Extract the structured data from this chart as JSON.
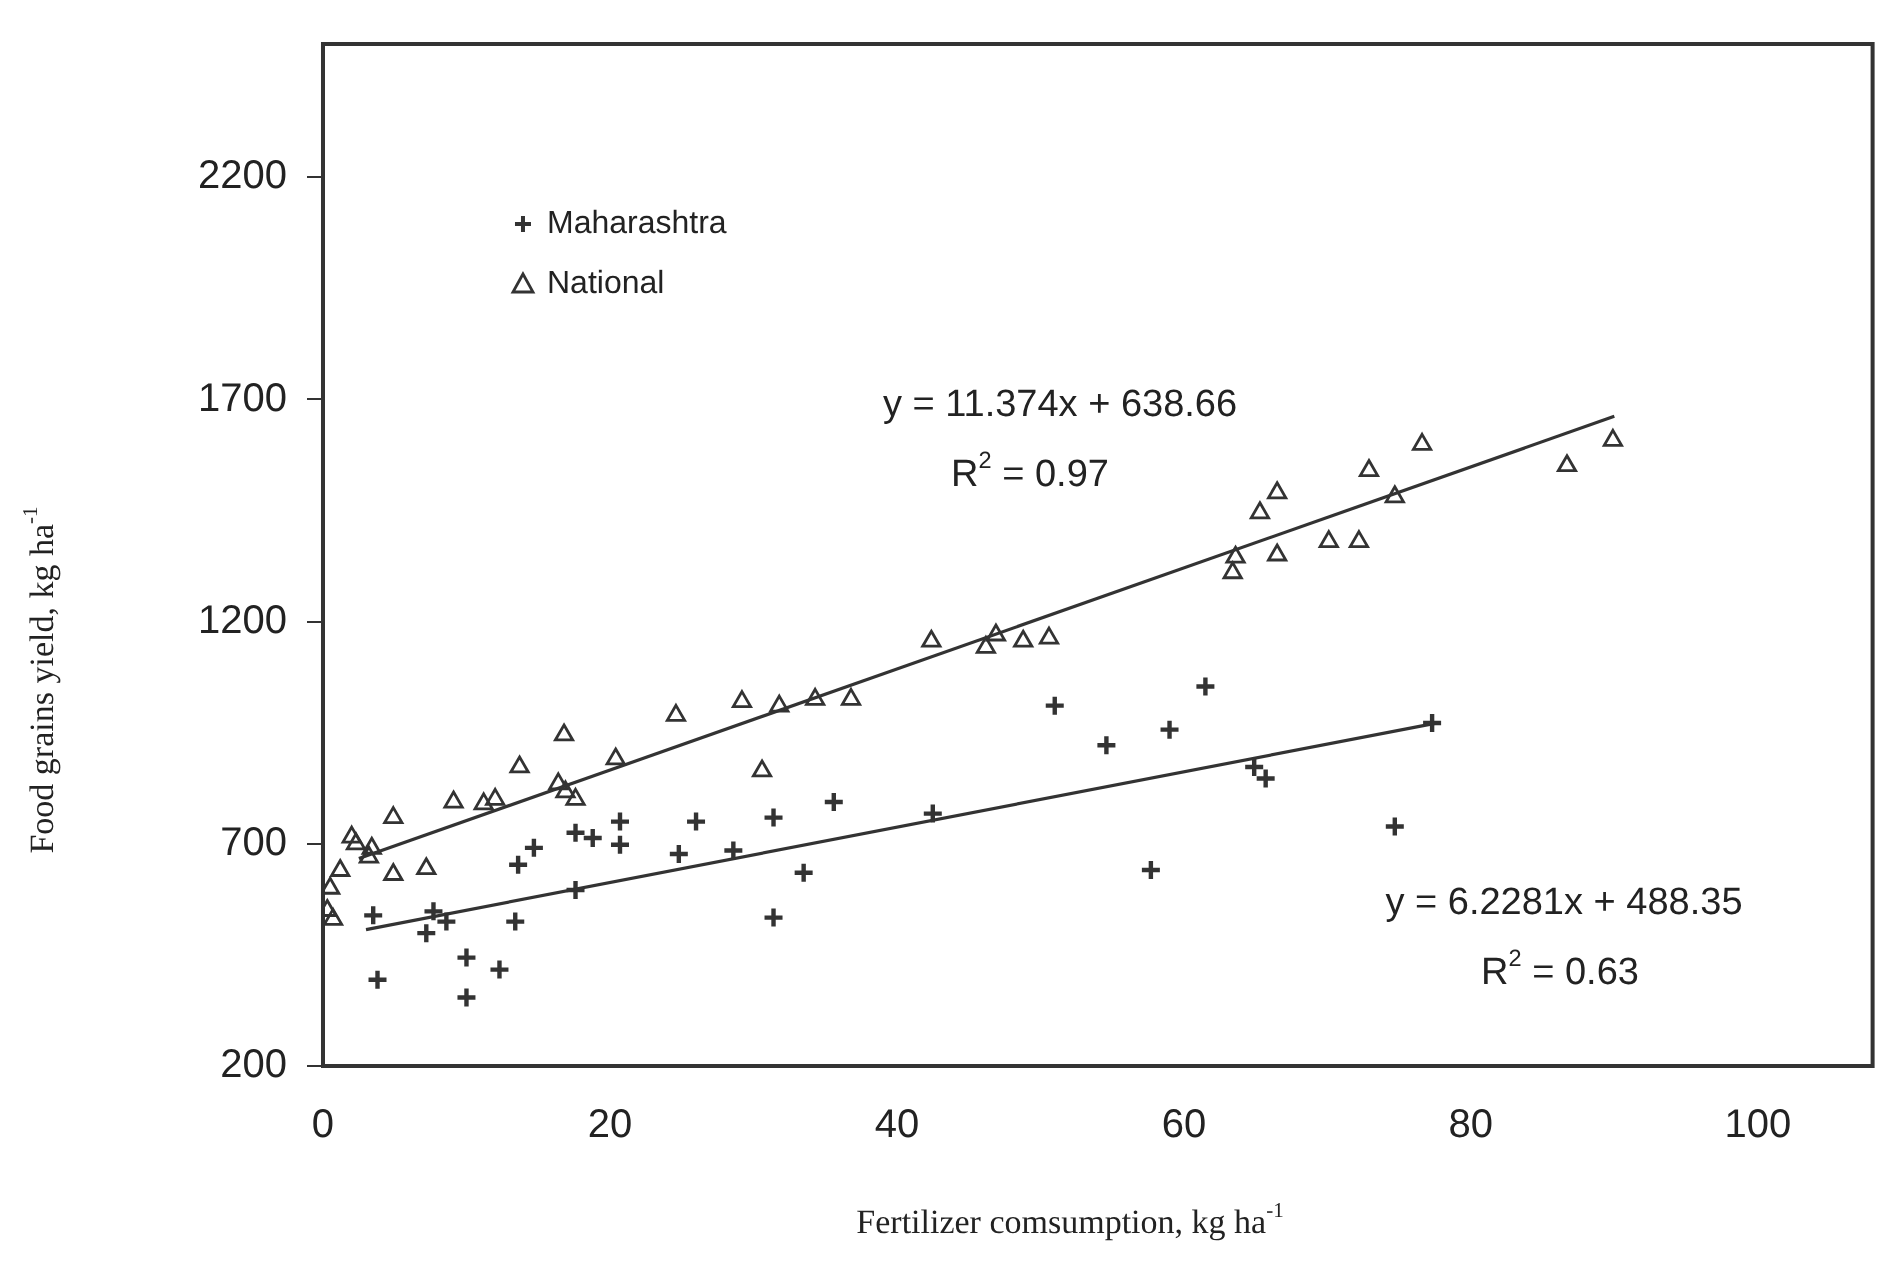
{
  "chart_data": {
    "type": "scatter",
    "xlabel": "Fertilizer comsumption, kg ha$^{-1}$",
    "ylabel": "Food grains yield, kg ha$^{-1}$",
    "xlim": [
      0,
      108
    ],
    "ylim": [
      200,
      2500
    ],
    "xticks": [
      0,
      20,
      40,
      60,
      80,
      100
    ],
    "yticks": [
      200,
      700,
      1200,
      1700,
      2200
    ],
    "grid": false,
    "legend": "top left",
    "series": [
      {
        "name": "Maharashtra",
        "marker": "cross",
        "color": "#333333",
        "x": [
          3.5,
          3.8,
          7.2,
          7.7,
          8.6,
          10.0,
          10.0,
          12.3,
          13.4,
          13.6,
          14.7,
          17.6,
          17.6,
          18.8,
          20.7,
          20.7,
          24.8,
          26.0,
          28.6,
          31.4,
          31.4,
          33.5,
          35.6,
          42.5,
          51.0,
          54.6,
          57.7,
          59.0,
          61.5,
          64.9,
          65.7,
          74.7,
          77.3
        ],
        "values": [
          539,
          394,
          499,
          548,
          525,
          444,
          354,
          417,
          525,
          653,
          691,
          596,
          725,
          713,
          750,
          698,
          677,
          750,
          685,
          759,
          534,
          635,
          794,
          768,
          1011,
          922,
          641,
          957,
          1054,
          873,
          847,
          739,
          972
        ]
      },
      {
        "name": "National",
        "marker": "triangle",
        "color": "#333333",
        "x": [
          0.3,
          0.5,
          0.7,
          1.2,
          2.0,
          2.3,
          3.2,
          3.4,
          4.9,
          4.9,
          7.2,
          9.1,
          11.2,
          12.0,
          13.7,
          16.4,
          16.8,
          16.9,
          17.6,
          20.4,
          24.6,
          29.2,
          30.6,
          31.8,
          34.3,
          36.8,
          42.4,
          46.2,
          46.9,
          48.8,
          50.6,
          63.4,
          63.6,
          65.3,
          66.5,
          66.5,
          70.1,
          72.2,
          72.9,
          74.7,
          76.6,
          86.7,
          89.9
        ],
        "values": [
          550,
          600,
          530,
          640,
          715,
          700,
          670,
          690,
          759,
          631,
          644,
          794,
          790,
          800,
          873,
          835,
          945,
          817,
          800,
          891,
          989,
          1020,
          864,
          1010,
          1025,
          1025,
          1156,
          1142,
          1170,
          1156,
          1163,
          1310,
          1345,
          1445,
          1490,
          1350,
          1380,
          1380,
          1540,
          1481,
          1599,
          1551,
          1608
        ]
      },
      {
        "type": "line",
        "marker": "none",
        "line_style": "solid",
        "color": "#333333",
        "x": [
          2.5,
          90
        ],
        "values": [
          667,
          1662
        ]
      },
      {
        "type": "line",
        "marker": "none",
        "line_style": "solid",
        "color": "#333333",
        "x": [
          3,
          77.5
        ],
        "values": [
          507,
          971
        ]
      }
    ],
    "annotations": [
      "y = 11.374x + 638.66",
      "R$^{2}$ = 0.97",
      "y = 6.2281x + 488.35",
      "R$^{2}$ = 0.63"
    ]
  }
}
